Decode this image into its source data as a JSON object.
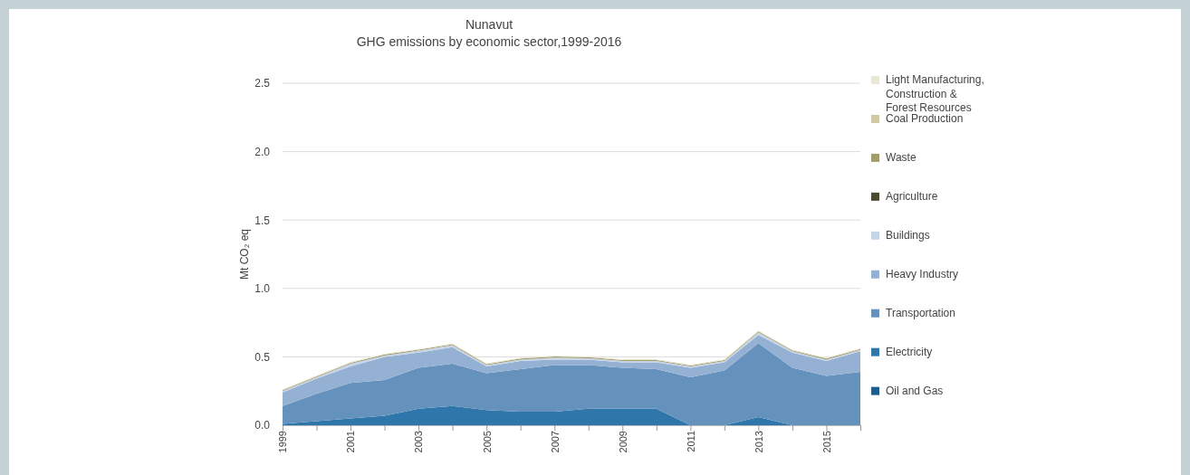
{
  "chart_data": {
    "type": "area",
    "stacked": true,
    "title": "Nunavut",
    "subtitle": "GHG emissions by economic sector,1999-2016",
    "ylabel": "Mt CO₂ eq",
    "x": [
      1999,
      2000,
      2001,
      2002,
      2003,
      2004,
      2005,
      2006,
      2007,
      2008,
      2009,
      2010,
      2011,
      2012,
      2013,
      2014,
      2015,
      2016
    ],
    "xlim": [
      1999,
      2016
    ],
    "xticks": [
      1999,
      {
        "value": 2000,
        "label": null
      },
      2001,
      {
        "value": 2002,
        "label": null
      },
      2003,
      {
        "value": 2004,
        "label": null
      },
      2005,
      {
        "value": 2006,
        "label": null
      },
      2007,
      {
        "value": 2008,
        "label": null
      },
      2009,
      {
        "value": 2010,
        "label": null
      },
      2011,
      {
        "value": 2012,
        "label": null
      },
      2013,
      {
        "value": 2014,
        "label": null
      },
      2015,
      {
        "value": 2016,
        "label": null
      }
    ],
    "ylim": [
      0,
      2.5
    ],
    "yticks": [
      {
        "value": 0,
        "label": "0.0"
      },
      0.5,
      {
        "value": 1,
        "label": "1.0"
      },
      1.5,
      {
        "value": 2,
        "label": "2.0"
      },
      2.5
    ],
    "grid": "y",
    "legend": "right",
    "series": [
      {
        "name": "Oil and Gas",
        "color": "#1c5d8c",
        "values": [
          null,
          null,
          null,
          null,
          null,
          null,
          null,
          null,
          null,
          null,
          null,
          null,
          null,
          null,
          null,
          null,
          null,
          null
        ]
      },
      {
        "name": "Electricity",
        "color": "#2f76ab",
        "values": [
          0.01,
          0.03,
          0.05,
          0.07,
          0.12,
          0.14,
          0.11,
          0.1,
          0.1,
          0.12,
          0.12,
          0.12,
          0,
          0,
          0.06,
          0,
          0,
          0
        ]
      },
      {
        "name": "Transportation",
        "color": "#6591bd",
        "values": [
          0.13,
          0.2,
          0.26,
          0.26,
          0.3,
          0.31,
          0.27,
          0.31,
          0.34,
          0.32,
          0.3,
          0.29,
          0.35,
          0.4,
          0.54,
          0.42,
          0.36,
          0.39
        ]
      },
      {
        "name": "Heavy Industry",
        "color": "#94b0d3",
        "values": [
          0.1,
          0.11,
          0.12,
          0.17,
          0.11,
          0.12,
          0.05,
          0.06,
          0.04,
          0.04,
          0.04,
          0.05,
          0.07,
          0.06,
          0.06,
          0.11,
          0.11,
          0.15
        ]
      },
      {
        "name": "Buildings",
        "color": "#c5d4e6",
        "values": [
          0.01,
          0.01,
          0.02,
          0.01,
          0.015,
          0.015,
          0.01,
          0.01,
          0.015,
          0.01,
          0.01,
          0.01,
          0.01,
          0.01,
          0.02,
          0.01,
          0.01,
          0.01
        ]
      },
      {
        "name": "Agriculture",
        "color": "#4a4a32",
        "values": [
          null,
          null,
          null,
          null,
          null,
          null,
          null,
          null,
          null,
          null,
          null,
          null,
          null,
          null,
          null,
          null,
          null,
          null
        ]
      },
      {
        "name": "Waste",
        "color": "#a39c6c",
        "values": [
          0.007,
          0.007,
          0.007,
          0.007,
          0.007,
          0.007,
          0.007,
          0.007,
          0.007,
          0.007,
          0.007,
          0.007,
          0.007,
          0.007,
          0.007,
          0.007,
          0.007,
          0.007
        ]
      },
      {
        "name": "Coal Production",
        "color": "#cfc9a6",
        "values": [
          null,
          null,
          null,
          null,
          null,
          null,
          null,
          null,
          null,
          null,
          null,
          null,
          null,
          null,
          null,
          null,
          null,
          null
        ]
      },
      {
        "name": "Light Manufacturing, Construction & Forest Resources",
        "color": "#e9e7d6",
        "values": [
          0.006,
          0.006,
          0.006,
          0.006,
          0.006,
          0.006,
          0.006,
          0.006,
          0.006,
          0.006,
          0.006,
          0.006,
          0.006,
          0.006,
          0.006,
          0.006,
          0.006,
          0.006
        ]
      }
    ]
  }
}
